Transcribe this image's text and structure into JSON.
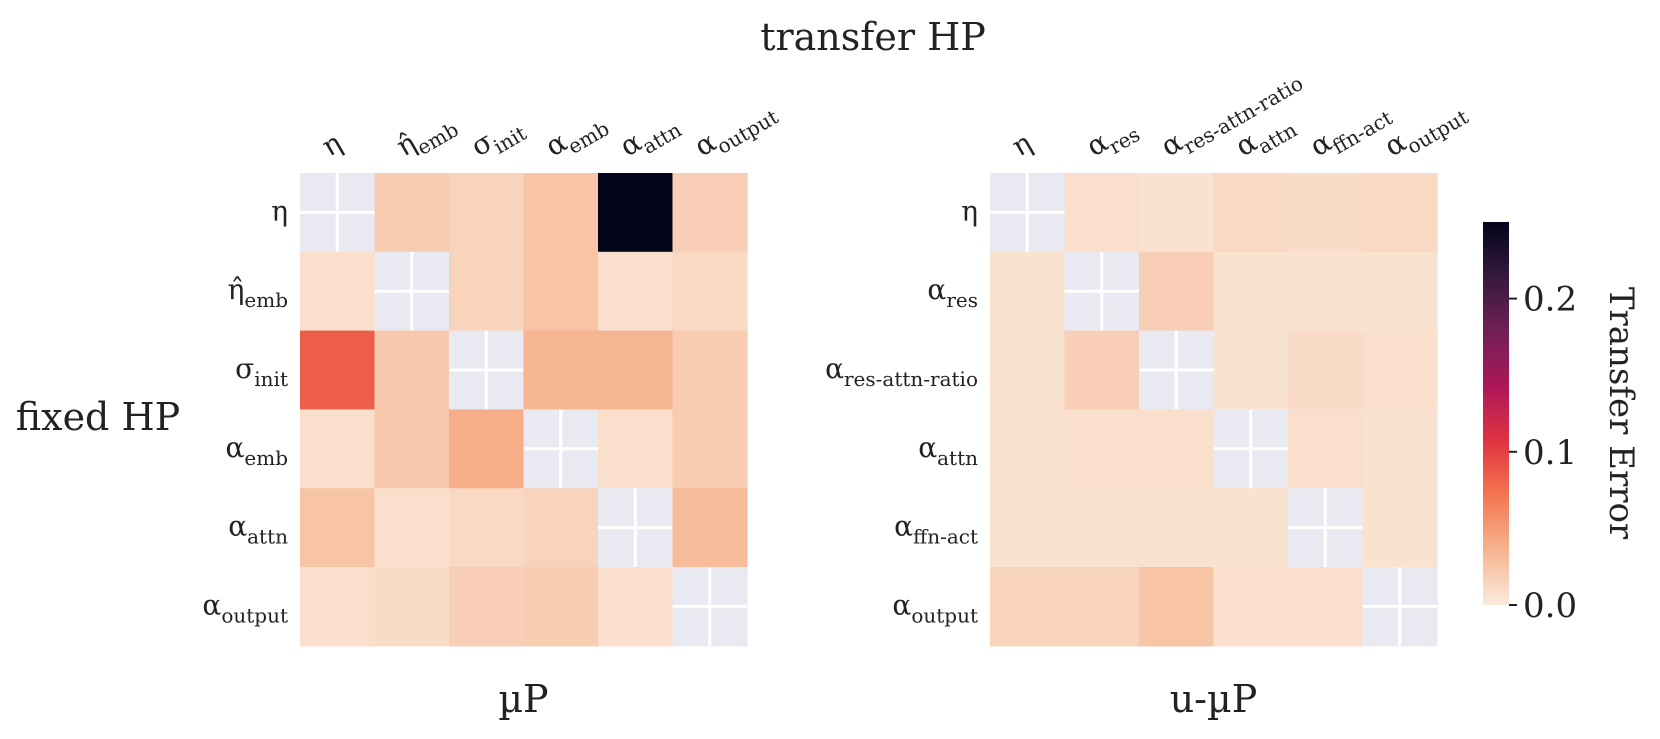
{
  "figure": {
    "top_label": "transfer HP",
    "left_label": "fixed HP"
  },
  "chart_data": [
    {
      "type": "heatmap",
      "title": "µP",
      "xlabel": "transfer HP",
      "ylabel": "fixed HP",
      "x_labels": [
        {
          "base": "η",
          "sub": ""
        },
        {
          "base": "η̂",
          "sub": "emb"
        },
        {
          "base": "σ",
          "sub": "init"
        },
        {
          "base": "α",
          "sub": "emb"
        },
        {
          "base": "α",
          "sub": "attn"
        },
        {
          "base": "α",
          "sub": "output"
        }
      ],
      "y_labels": [
        {
          "base": "η",
          "sub": ""
        },
        {
          "base": "η̂",
          "sub": "emb"
        },
        {
          "base": "σ",
          "sub": "init"
        },
        {
          "base": "α",
          "sub": "emb"
        },
        {
          "base": "α",
          "sub": "attn"
        },
        {
          "base": "α",
          "sub": "output"
        }
      ],
      "values": [
        [
          null,
          0.02,
          0.015,
          0.025,
          0.25,
          0.018
        ],
        [
          0.008,
          null,
          0.015,
          0.025,
          0.008,
          0.012
        ],
        [
          0.085,
          0.022,
          null,
          0.035,
          0.035,
          0.02
        ],
        [
          0.008,
          0.022,
          0.04,
          null,
          0.008,
          0.02
        ],
        [
          0.025,
          0.008,
          0.012,
          0.015,
          null,
          0.03
        ],
        [
          0.008,
          0.01,
          0.018,
          0.02,
          0.008,
          null
        ]
      ],
      "diagonal": "masked"
    },
    {
      "type": "heatmap",
      "title": "u-µP",
      "xlabel": "transfer HP",
      "ylabel": "fixed HP",
      "x_labels": [
        {
          "base": "η",
          "sub": ""
        },
        {
          "base": "α",
          "sub": "res"
        },
        {
          "base": "α",
          "sub": "res-attn-ratio"
        },
        {
          "base": "α",
          "sub": "attn"
        },
        {
          "base": "α",
          "sub": "ffn-act"
        },
        {
          "base": "α",
          "sub": "output"
        }
      ],
      "y_labels": [
        {
          "base": "η",
          "sub": ""
        },
        {
          "base": "α",
          "sub": "res"
        },
        {
          "base": "α",
          "sub": "res-attn-ratio"
        },
        {
          "base": "α",
          "sub": "attn"
        },
        {
          "base": "α",
          "sub": "ffn-act"
        },
        {
          "base": "α",
          "sub": "output"
        }
      ],
      "values": [
        [
          null,
          0.008,
          0.006,
          0.012,
          0.01,
          0.012
        ],
        [
          0.006,
          null,
          0.018,
          0.006,
          0.006,
          0.006
        ],
        [
          0.006,
          0.018,
          null,
          0.006,
          0.01,
          0.008
        ],
        [
          0.006,
          0.008,
          0.008,
          null,
          0.008,
          0.006
        ],
        [
          0.006,
          0.006,
          0.006,
          0.006,
          null,
          0.006
        ],
        [
          0.015,
          0.015,
          0.025,
          0.008,
          0.008,
          null
        ]
      ],
      "diagonal": "masked"
    }
  ],
  "colorbar": {
    "label": "Transfer Error",
    "min": 0.0,
    "max": 0.25,
    "ticks": [
      {
        "value": 0.0,
        "label": "0.0"
      },
      {
        "value": 0.1,
        "label": "0.1"
      },
      {
        "value": 0.2,
        "label": "0.2"
      }
    ],
    "colormap": "rocket_r",
    "stops": [
      "#faebdd",
      "#f6b48f",
      "#f37651",
      "#e13342",
      "#ad1759",
      "#701f57",
      "#35193e",
      "#03051a"
    ],
    "masked_color": "#e9e9f1",
    "masked_line_color": "#ffffff"
  }
}
